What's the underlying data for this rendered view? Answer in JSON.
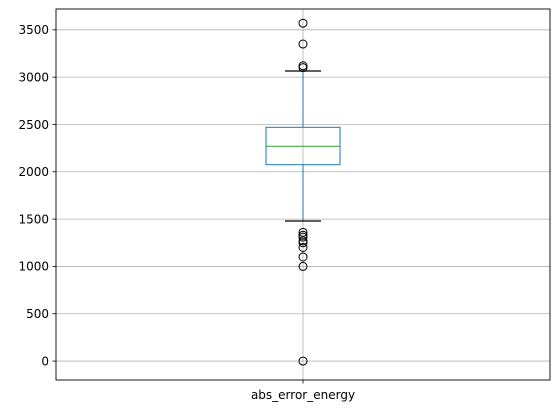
{
  "chart_data": {
    "type": "boxplot",
    "categories": [
      "abs_error_energy"
    ],
    "ylim": [
      -200,
      3720
    ],
    "yticks": [
      0,
      500,
      1000,
      1500,
      2000,
      2500,
      3000,
      3500
    ],
    "ytick_labels": [
      "0",
      "500",
      "1000",
      "1500",
      "2000",
      "2500",
      "3000",
      "3500"
    ],
    "grid": true,
    "box": {
      "q1": 2075,
      "median": 2270,
      "q3": 2470,
      "whisker_low": 1480,
      "whisker_high": 3065
    },
    "outliers": [
      3570,
      3350,
      3120,
      3100,
      1360,
      1330,
      1310,
      1270,
      1250,
      1200,
      1100,
      1000,
      0
    ],
    "colors": {
      "box": "#1f77b4",
      "median": "#2ca02c",
      "whisker": "#1f77b4",
      "cap": "#000000",
      "grid": "#b0b0b0",
      "outlier_edge": "#000000"
    }
  }
}
